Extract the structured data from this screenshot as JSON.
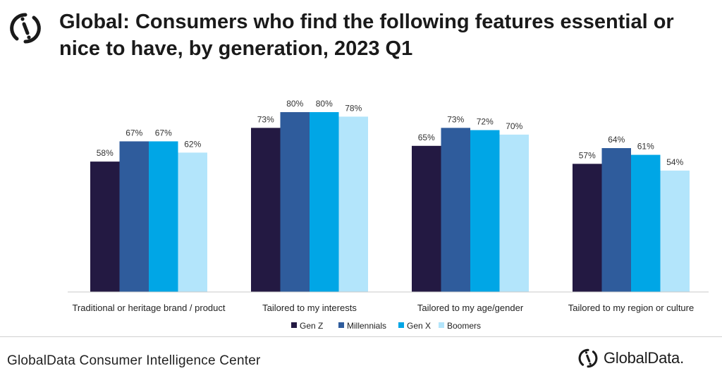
{
  "header": {
    "title": "Global: Consumers who find the following features essential or nice to have, by generation, 2023 Q1",
    "logo_icon": "globaldata-logo-icon"
  },
  "chart_data": {
    "type": "bar",
    "categories": [
      "Traditional or heritage brand / product",
      "Tailored to my interests",
      "Tailored to my age/gender",
      "Tailored to my region or culture"
    ],
    "series": [
      {
        "name": "Gen Z",
        "color": "#231942",
        "values": [
          58,
          73,
          65,
          57
        ]
      },
      {
        "name": "Millennials",
        "color": "#2f5c9c",
        "values": [
          67,
          80,
          73,
          64
        ]
      },
      {
        "name": "Gen X",
        "color": "#00a6e6",
        "values": [
          67,
          80,
          72,
          61
        ]
      },
      {
        "name": "Boomers",
        "color": "#b3e5fb",
        "values": [
          62,
          78,
          70,
          54
        ]
      }
    ],
    "value_suffix": "%",
    "ylim": [
      0,
      100
    ],
    "grid": false,
    "legend": "bottom-center"
  },
  "footer": {
    "source": "GlobalData Consumer Intelligence Center",
    "brand": "GlobalData."
  }
}
